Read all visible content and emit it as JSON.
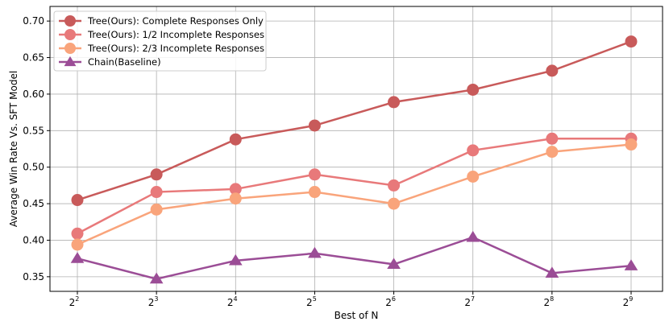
{
  "chart_data": {
    "type": "line",
    "title": "",
    "xlabel": "Best of N",
    "ylabel": "Average Win Rate Vs. SFT Model",
    "x_ticks": [
      {
        "base": "2",
        "exp": "2"
      },
      {
        "base": "2",
        "exp": "3"
      },
      {
        "base": "2",
        "exp": "4"
      },
      {
        "base": "2",
        "exp": "5"
      },
      {
        "base": "2",
        "exp": "6"
      },
      {
        "base": "2",
        "exp": "7"
      },
      {
        "base": "2",
        "exp": "8"
      },
      {
        "base": "2",
        "exp": "9"
      }
    ],
    "x": [
      4,
      8,
      16,
      32,
      64,
      128,
      256,
      512
    ],
    "x_scale": "log2",
    "ylim": [
      0.33,
      0.72
    ],
    "y_ticks": [
      "0.35",
      "0.40",
      "0.45",
      "0.50",
      "0.55",
      "0.60",
      "0.65",
      "0.70"
    ],
    "grid": true,
    "legend_position": "top-left",
    "series": [
      {
        "name": "Tree(Ours): Complete Responses Only",
        "color": "#c85a5a",
        "marker": "circle",
        "values": [
          0.455,
          0.49,
          0.538,
          0.557,
          0.589,
          0.606,
          0.632,
          0.672
        ]
      },
      {
        "name": "Tree(Ours): 1/2 Incomplete Responses",
        "color": "#e8797a",
        "marker": "circle",
        "values": [
          0.409,
          0.466,
          0.47,
          0.49,
          0.475,
          0.523,
          0.539,
          0.539
        ]
      },
      {
        "name": "Tree(Ours): 2/3 Incomplete Responses",
        "color": "#f9a47b",
        "marker": "circle",
        "values": [
          0.394,
          0.442,
          0.457,
          0.466,
          0.45,
          0.487,
          0.521,
          0.531
        ]
      },
      {
        "name": "Chain(Baseline)",
        "color": "#9b4d96",
        "marker": "triangle",
        "values": [
          0.375,
          0.347,
          0.372,
          0.382,
          0.367,
          0.404,
          0.355,
          0.365
        ]
      }
    ]
  }
}
